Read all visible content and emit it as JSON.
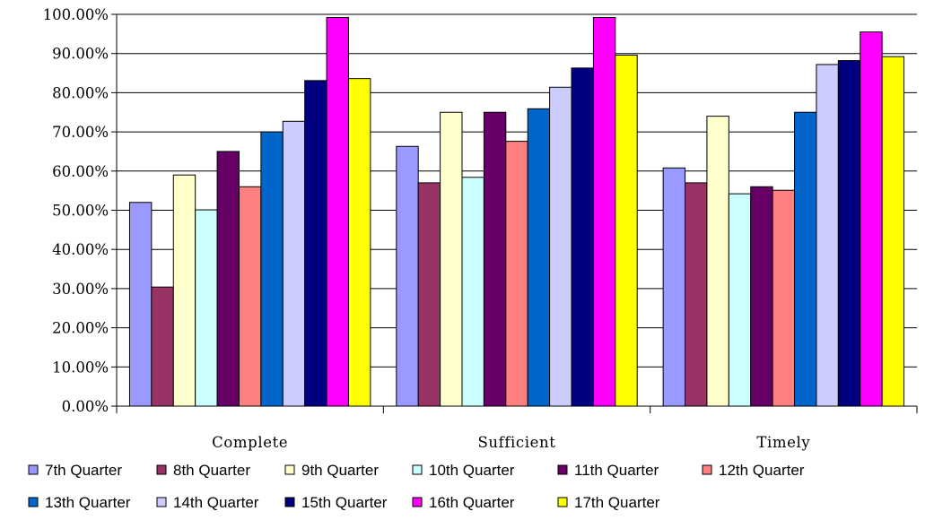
{
  "chart_data": {
    "type": "bar",
    "title": "",
    "xlabel": "",
    "ylabel": "",
    "categories": [
      "Complete",
      "Sufficient",
      "Timely"
    ],
    "ylim": [
      0,
      100
    ],
    "yticks": [
      0,
      10,
      20,
      30,
      40,
      50,
      60,
      70,
      80,
      90,
      100
    ],
    "ytick_labels": [
      "0.00%",
      "10.00%",
      "20.00%",
      "30.00%",
      "40.00%",
      "50.00%",
      "60.00%",
      "70.00%",
      "80.00%",
      "90.00%",
      "100.00%"
    ],
    "grid": "horizontal",
    "legend_position": "bottom",
    "series": [
      {
        "name": "7th Quarter",
        "color": "#9999ff",
        "values": [
          52.0,
          66.3,
          60.8
        ]
      },
      {
        "name": "8th Quarter",
        "color": "#993366",
        "values": [
          30.4,
          57.0,
          57.0
        ]
      },
      {
        "name": "9th Quarter",
        "color": "#ffffcc",
        "values": [
          59.0,
          75.0,
          74.0
        ]
      },
      {
        "name": "10th Quarter",
        "color": "#ccffff",
        "values": [
          50.1,
          58.4,
          54.2
        ]
      },
      {
        "name": "11th Quarter",
        "color": "#660066",
        "values": [
          65.0,
          75.0,
          56.0
        ]
      },
      {
        "name": "12th Quarter",
        "color": "#ff8080",
        "values": [
          56.0,
          67.6,
          55.1
        ]
      },
      {
        "name": "13th Quarter",
        "color": "#0066cc",
        "values": [
          70.0,
          75.9,
          75.0
        ]
      },
      {
        "name": "14th Quarter",
        "color": "#ccccff",
        "values": [
          72.7,
          81.4,
          87.2
        ]
      },
      {
        "name": "15th Quarter",
        "color": "#000080",
        "values": [
          83.1,
          86.3,
          88.2
        ]
      },
      {
        "name": "16th Quarter",
        "color": "#ff00ff",
        "values": [
          99.2,
          99.2,
          95.5
        ]
      },
      {
        "name": "17th Quarter",
        "color": "#ffff00",
        "values": [
          83.6,
          89.6,
          89.2
        ]
      }
    ]
  }
}
